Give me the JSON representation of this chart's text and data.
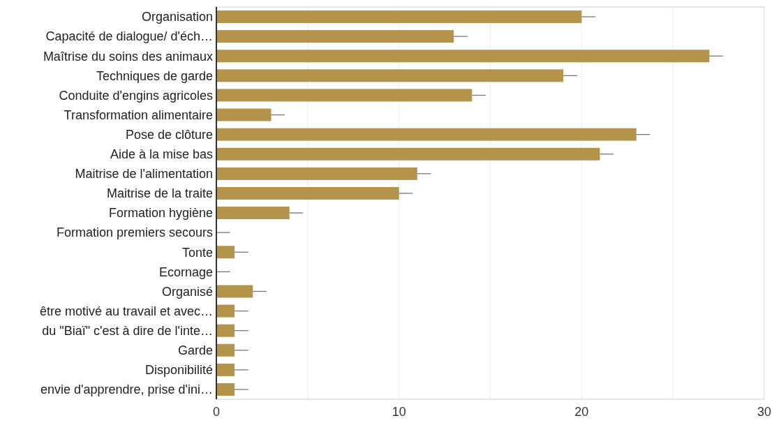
{
  "chart_data": {
    "type": "bar",
    "orientation": "horizontal",
    "categories": [
      "Organisation",
      "Capacité de dialogue/ d'éch…",
      "Maîtrise du soins des animaux",
      "Techniques de garde",
      "Conduite d'engins agricoles",
      "Transformation alimentaire",
      "Pose de clôture",
      "Aide à la mise bas",
      "Maitrise de l'alimentation",
      "Maitrise de la traite",
      "Formation hygiène",
      "Formation premiers secours",
      "Tonte",
      "Ecornage",
      "Organisé",
      "être motivé au travail et avec…",
      "du \"Biaï\" c'est à dire de l'inte…",
      "Garde",
      "Disponibilité",
      "envie d'apprendre, prise d'ini…"
    ],
    "values": [
      20,
      13,
      27,
      19,
      14,
      3,
      23,
      21,
      11,
      10,
      4,
      0,
      1,
      0,
      2,
      1,
      1,
      1,
      1,
      1
    ],
    "errors": [
      [
        20,
        20.75
      ],
      [
        13,
        13.75
      ],
      [
        27,
        27.75
      ],
      [
        19,
        19.75
      ],
      [
        14,
        14.75
      ],
      [
        3,
        3.75
      ],
      [
        23,
        23.75
      ],
      [
        21,
        21.75
      ],
      [
        11,
        11.75
      ],
      [
        10,
        10.75
      ],
      [
        4,
        4.75
      ],
      [
        0,
        0.75
      ],
      [
        1,
        1.75
      ],
      [
        0,
        0.75
      ],
      [
        2,
        2.75
      ],
      [
        1,
        1.75
      ],
      [
        1,
        1.75
      ],
      [
        1,
        1.75
      ],
      [
        1,
        1.75
      ],
      [
        1,
        1.75
      ]
    ],
    "color": "#b3944a",
    "xlim": [
      0,
      30
    ],
    "xticks": [
      0,
      {
        "value": 5,
        "label": null
      },
      10,
      {
        "value": 15,
        "label": null
      },
      20,
      {
        "value": 25,
        "label": null
      },
      30
    ],
    "grid": "x"
  }
}
